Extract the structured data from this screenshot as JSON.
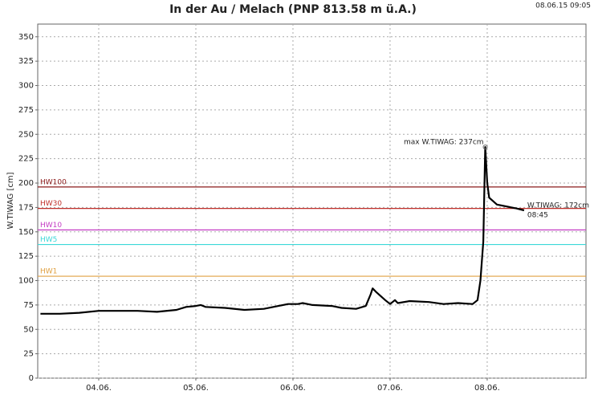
{
  "chart_data": {
    "type": "line",
    "title": "In der Au / Melach (PNP 813.58 m ü.A.)",
    "timestamp": "08.06.15 09:05",
    "y_label": "W.TIWAG [cm]",
    "x": [
      3.4,
      3.6,
      3.8,
      4.0,
      4.2,
      4.4,
      4.6,
      4.8,
      4.9,
      5.0,
      5.05,
      5.1,
      5.3,
      5.5,
      5.7,
      5.85,
      5.95,
      6.05,
      6.1,
      6.2,
      6.4,
      6.5,
      6.65,
      6.75,
      6.8,
      6.82,
      6.86,
      6.95,
      7.0,
      7.05,
      7.08,
      7.2,
      7.4,
      7.55,
      7.7,
      7.85,
      7.9,
      7.93,
      7.96,
      7.98,
      8.0,
      8.02,
      8.1,
      8.3,
      8.38
    ],
    "series": [
      {
        "name": "W.TIWAG",
        "color": "#000000",
        "values": [
          66,
          66,
          67,
          69,
          69,
          69,
          68,
          70,
          73,
          74,
          75,
          73,
          72,
          70,
          71,
          74,
          76,
          76,
          77,
          75,
          74,
          72,
          71,
          74,
          86,
          92,
          88,
          80,
          76,
          80,
          77,
          79,
          78,
          76,
          77,
          76,
          80,
          100,
          140,
          237,
          200,
          185,
          178,
          174,
          172
        ]
      }
    ],
    "thresholds": [
      {
        "name": "HW100",
        "value": 196,
        "color": "#8b1a1a"
      },
      {
        "name": "HW30",
        "value": 174,
        "color": "#c0302b"
      },
      {
        "name": "HW10",
        "value": 152,
        "color": "#c43cc4"
      },
      {
        "name": "HW5",
        "value": 137,
        "color": "#3cd8d8"
      },
      {
        "name": "HW1",
        "value": 104.5,
        "color": "#e0a040"
      }
    ],
    "max_annotation": "max W.TIWAG: 237cm",
    "last_annotation": "W.TIWAG: 172cm",
    "last_time": "08:45",
    "xlim": [
      3.372,
      9.017
    ],
    "xticks": [
      {
        "value": 4,
        "label": "04.06."
      },
      {
        "value": 5,
        "label": "05.06."
      },
      {
        "value": 6,
        "label": "06.06."
      },
      {
        "value": 7,
        "label": "07.06."
      },
      {
        "value": 8,
        "label": "08.06."
      }
    ],
    "ylim": [
      0,
      363
    ],
    "yticks": [
      0,
      25,
      50,
      75,
      100,
      125,
      150,
      175,
      200,
      225,
      250,
      275,
      300,
      325,
      350
    ],
    "grid": true
  }
}
